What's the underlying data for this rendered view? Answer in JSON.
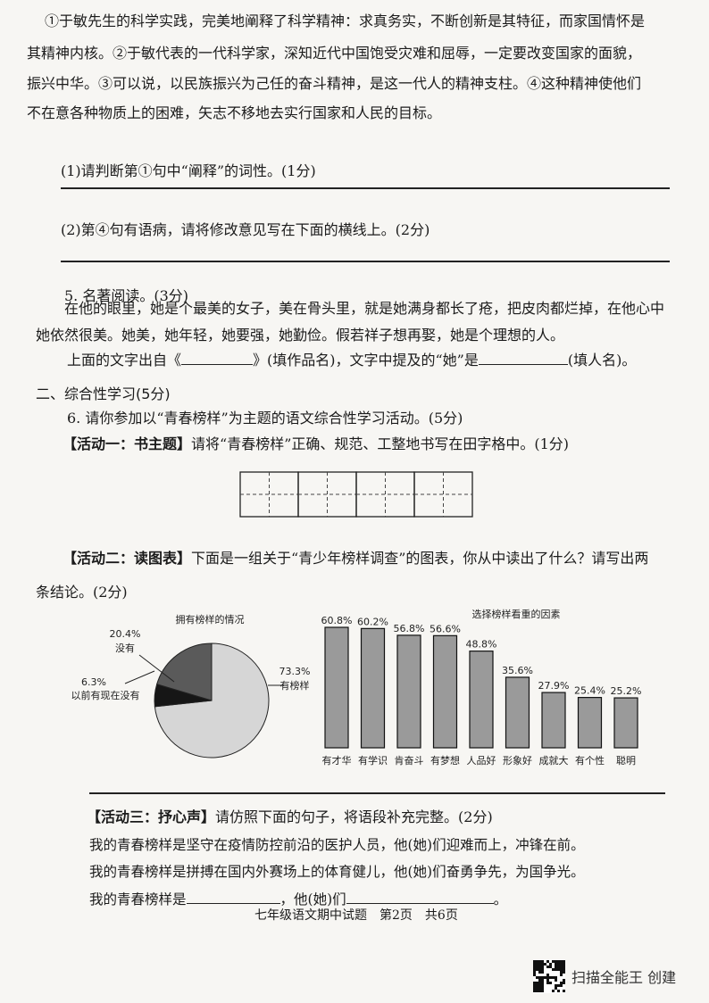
{
  "passage": {
    "lines": [
      "①于敏先生的科学实践，完美地阐释了科学精神：求真务实，不断创新是其特征，而家国情怀是",
      "其精神内核。②于敏代表的一代科学家，深知近代中国饱受灾难和屈辱，一定要改变国家的面貌，",
      "振兴中华。③可以说，以民族振兴为己任的奋斗精神，是这一代人的精神支柱。④这种精神使他们",
      "不在意各种物质上的困难，矢志不移地去实行国家和人民的目标。"
    ]
  },
  "q1": "(1)请判断第①句中“阐释”的词性。(1分)",
  "q2": "(2)第④句有语病，请将修改意见写在下面的横线上。(2分)",
  "q5": {
    "title": "5. 名著阅读。(3分)",
    "line1": "在他的眼里，她是个最美的女子，美在骨头里，就是她满身都长了疮，把皮肉都烂掉，在他心中",
    "line2": "她依然很美。她美，她年轻，她要强，她勤俭。假若祥子想再娶，她是个理想的人。",
    "prompt_a": "上面的文字出自《",
    "prompt_b": "》(填作品名)，文字中提及的“她”是",
    "prompt_c": "(填人名)。"
  },
  "section2": "二、综合性学习(5分)",
  "q6": {
    "title": "6. 请你参加以“青春榜样”为主题的语文综合性学习活动。(5分)",
    "act1_label": "【活动一：书主题】",
    "act1_text": "请将“青春榜样”正确、规范、工整地书写在田字格中。(1分)",
    "act2_label": "【活动二：读图表】",
    "act2_text": "下面是一组关于“青少年榜样调查”的图表，你从中读出了什么？请写出两",
    "act2_text2": "条结论。(2分)",
    "act3_label": "【活动三：抒心声】",
    "act3_text": "请仿照下面的句子，将语段补充完整。(2分)",
    "ex1": "我的青春榜样是坚守在疫情防控前沿的医护人员，他(她)们迎难而上，冲锋在前。",
    "ex2": "我的青春榜样是拼搏在国内外赛场上的体育健儿，他(她)们奋勇争先，为国争光。",
    "fill_a": "我的青春榜样是",
    "fill_b": "，他(她)们",
    "fill_c": "。"
  },
  "chart_data": [
    {
      "type": "pie",
      "title": "拥有榜样的情况",
      "slices": [
        {
          "label": "有榜样",
          "value": 73.3,
          "value_label": "73.3%",
          "color": "#d6d6d6"
        },
        {
          "label": "以前有现在没有",
          "value": 6.3,
          "value_label": "6.3%",
          "color": "#161616"
        },
        {
          "label": "没有",
          "value": 20.4,
          "value_label": "20.4%",
          "color": "#5a5a5a"
        }
      ]
    },
    {
      "type": "bar",
      "title": "选择榜样看重的因素",
      "categories": [
        "有才华",
        "有学识",
        "肯奋斗",
        "有梦想",
        "人品好",
        "形象好",
        "成就大",
        "有个性",
        "聪明"
      ],
      "values": [
        60.8,
        60.2,
        56.8,
        56.6,
        48.8,
        35.6,
        27.9,
        25.4,
        25.2
      ],
      "value_labels": [
        "60.8%",
        "60.2%",
        "56.8%",
        "56.6%",
        "48.8%",
        "35.6%",
        "27.9%",
        "25.4%",
        "25.2%"
      ],
      "bar_color": "#9a9a9a"
    }
  ],
  "footer": "七年级语文期中试题　第2页　共6页",
  "watermark": "扫描全能王 创建"
}
